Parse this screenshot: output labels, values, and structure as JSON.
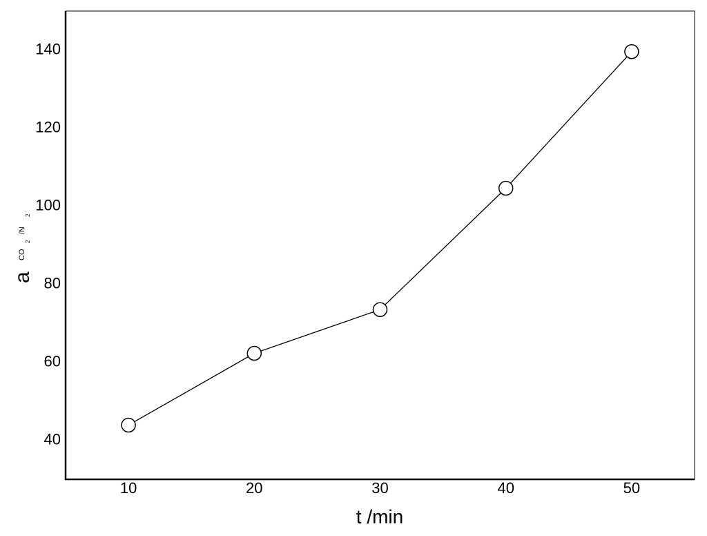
{
  "chart_data": {
    "type": "line",
    "x_label": "t /min",
    "y_label": "a",
    "y_label_subscript": [
      "CO",
      "2",
      "/N",
      "2"
    ],
    "x": [
      10,
      20,
      30,
      40,
      50
    ],
    "series": [
      {
        "color": "#000000",
        "values": [
          43.9,
          62.3,
          73.5,
          104.6,
          139.6
        ]
      }
    ],
    "xlim": [
      5,
      55
    ],
    "xticks": [
      10,
      20,
      30,
      40,
      50
    ],
    "ylim": [
      30,
      150
    ],
    "yticks": [
      40,
      60,
      80,
      100,
      120,
      140
    ],
    "grid": false
  }
}
